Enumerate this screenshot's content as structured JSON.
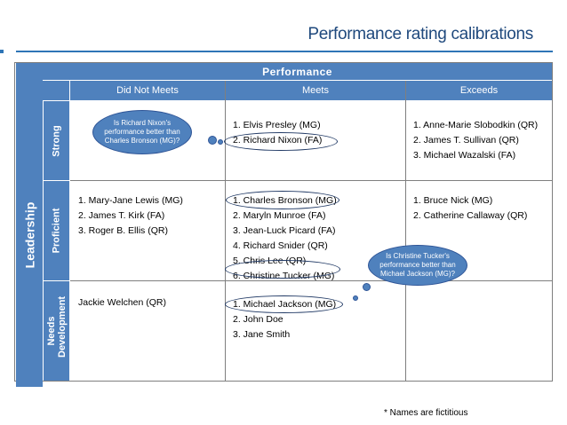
{
  "slide": {
    "title": "Performance rating calibrations",
    "footnote": "* Names are fictitious"
  },
  "matrix": {
    "row_axis_label": "Leadership",
    "column_axis_label": "Performance",
    "columns": [
      "Did Not Meets",
      "Meets",
      "Exceeds"
    ],
    "rows": [
      "Strong",
      "Proficient",
      "Needs Development"
    ],
    "cells": {
      "strong": {
        "did_not_meet": [],
        "meets": [
          "1. Elvis Presley (MG)",
          "2. Richard Nixon (FA)"
        ],
        "exceeds": [
          "1. Anne-Marie Slobodkin (QR)",
          "2. James T. Sullivan (QR)",
          "3. Michael Wazalski (FA)"
        ]
      },
      "proficient": {
        "did_not_meet": [
          "1. Mary-Jane Lewis (MG)",
          "2. James T. Kirk (FA)",
          "3. Roger B. Ellis (QR)"
        ],
        "meets": [
          "1. Charles Bronson (MG)",
          "2. Maryln Munroe (FA)",
          "3. Jean-Luck Picard (FA)",
          "4. Richard Snider (QR)",
          "5. Chris Lee (QR)",
          "6. Christine Tucker (MG)"
        ],
        "exceeds": [
          "1. Bruce Nick (MG)",
          "2. Catherine Callaway (QR)"
        ]
      },
      "needs_development": {
        "did_not_meet": [
          "Jackie Welchen (QR)"
        ],
        "meets": [
          "1. Michael Jackson (MG)",
          "2. John Doe",
          "3. Jane Smith"
        ],
        "exceeds": []
      }
    }
  },
  "callouts": [
    {
      "text": "Is Richard Nixon's performance better than Charles Bronson (MG)?"
    },
    {
      "text": "Is Christine Tucker's performance better than Michael Jackson (MG)?"
    }
  ],
  "colors": {
    "header_fill": "#4f81bd",
    "title_text": "#1f497d",
    "rule": "#2e75b6"
  }
}
